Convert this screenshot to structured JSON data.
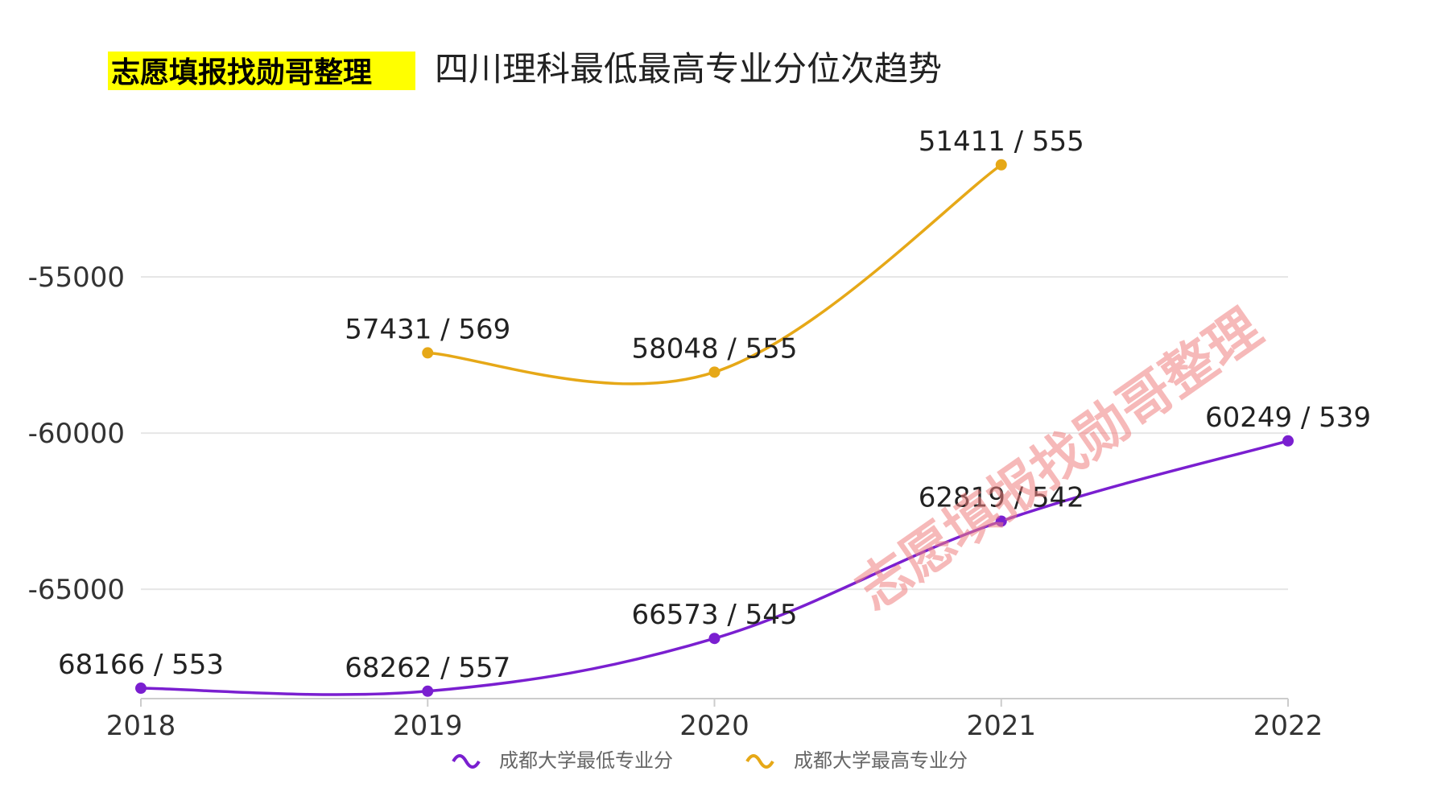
{
  "header": {
    "badge": "志愿填报找勋哥整理",
    "title": "四川理科最低最高专业分位次趋势"
  },
  "watermark": "志愿填报找勋哥整理",
  "colors": {
    "min_series": "#7a1fd0",
    "max_series": "#e6a817",
    "badge_bg": "#ffff00",
    "grid": "#e6e6e6"
  },
  "chart_data": {
    "type": "line",
    "title": "四川理科最低最高专业分位次趋势",
    "x": [
      "2018",
      "2019",
      "2020",
      "2021",
      "2022"
    ],
    "y_ticks": [
      "-55000",
      "-60000",
      "-65000"
    ],
    "ylim": [
      -68500,
      -50000
    ],
    "grid": true,
    "legend_position": "bottom-center",
    "series": [
      {
        "name": "成都大学最低专业分",
        "values": [
          -68166,
          -68262,
          -66573,
          -62819,
          -60249
        ],
        "labels": [
          "68166 / 553",
          "68262 / 557",
          "66573 / 545",
          "62819 / 542",
          "60249 / 539"
        ]
      },
      {
        "name": "成都大学最高专业分",
        "values": [
          null,
          -57431,
          -58048,
          -51411,
          null
        ],
        "labels": [
          "",
          "57431 / 569",
          "58048 / 555",
          "51411 / 555",
          ""
        ]
      }
    ]
  }
}
